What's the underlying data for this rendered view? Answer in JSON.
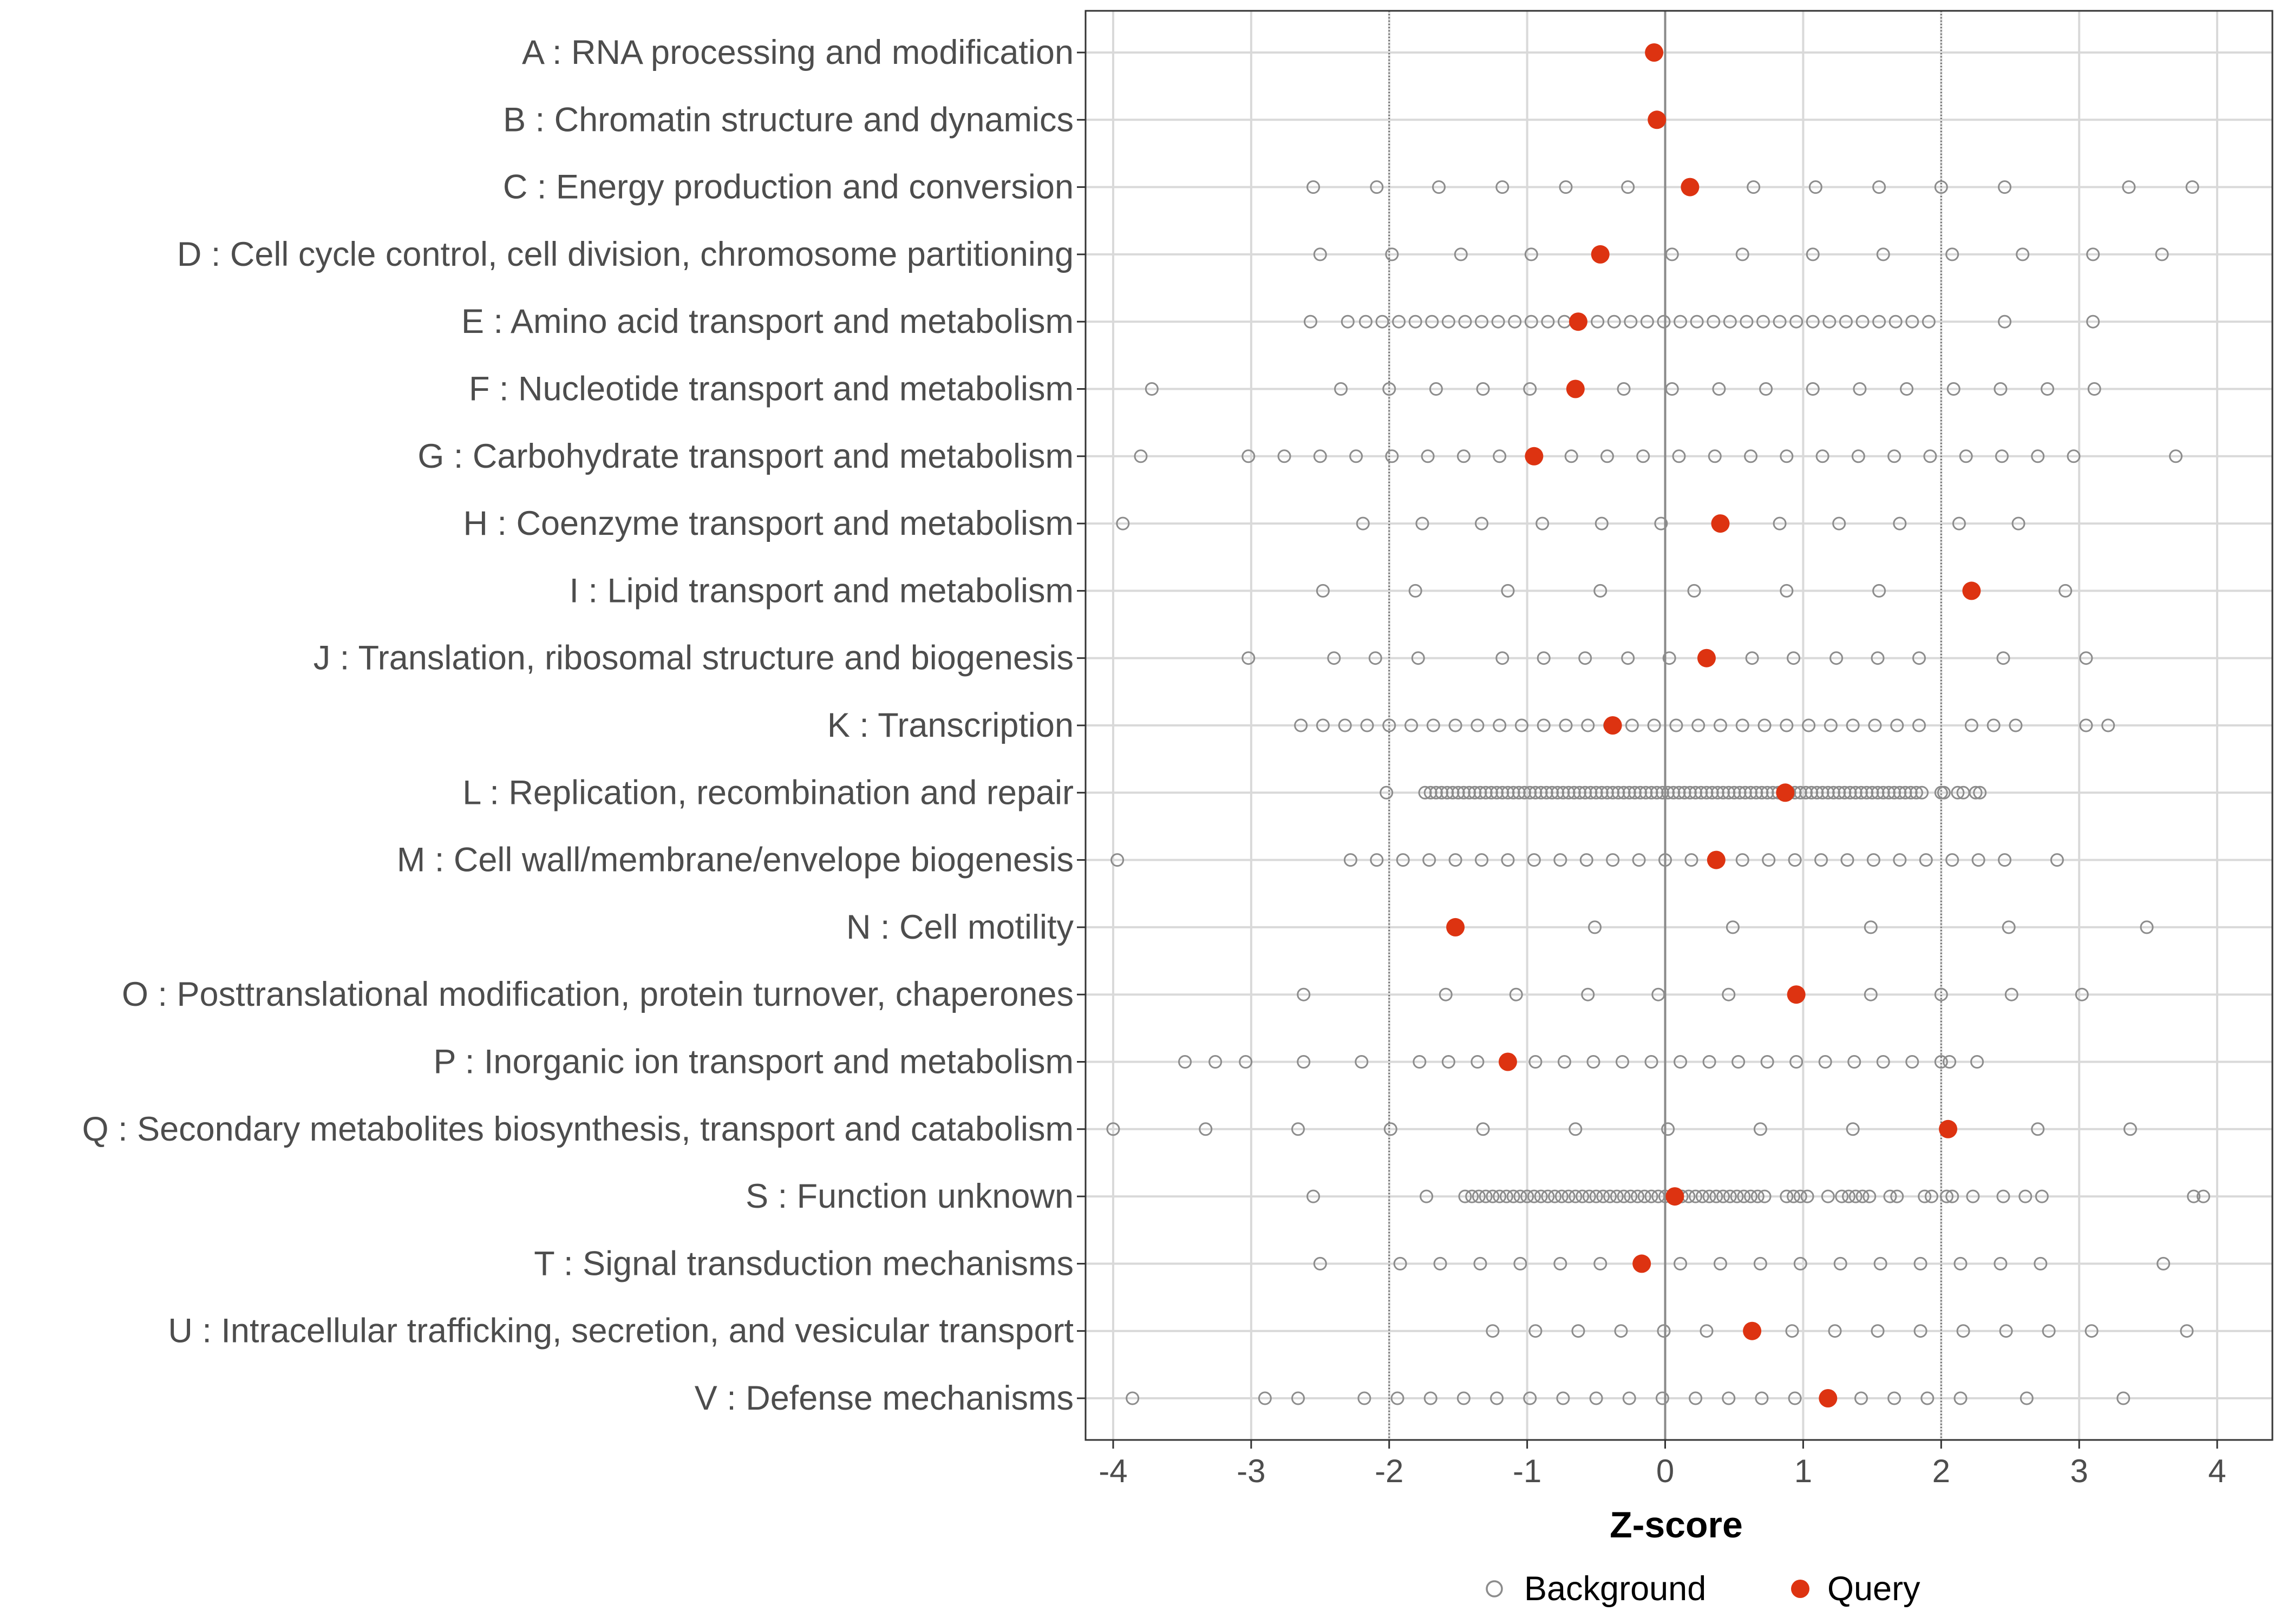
{
  "chart_data": {
    "type": "scatter",
    "title": "",
    "xlabel": "Z-score",
    "ylabel": "",
    "xlim": [
      -4.2,
      4.4
    ],
    "xticks": [
      "-4",
      "-3",
      "-2",
      "-1",
      "0",
      "1",
      "2",
      "3",
      "4"
    ],
    "reference_lines": [
      -2,
      0,
      2
    ],
    "grid": true,
    "legend": {
      "position": "bottom",
      "entries": [
        {
          "name": "Background",
          "marker": "open-circle",
          "color": "#8c8c8c"
        },
        {
          "name": "Query",
          "marker": "filled-circle",
          "color": "#dd3311"
        }
      ]
    },
    "categories": [
      "A : RNA processing and modification",
      "B : Chromatin structure and dynamics",
      "C : Energy production and conversion",
      "D : Cell cycle control, cell division, chromosome partitioning",
      "E : Amino acid transport and metabolism",
      "F : Nucleotide transport and metabolism",
      "G : Carbohydrate transport and metabolism",
      "H : Coenzyme transport and metabolism",
      "I : Lipid transport and metabolism",
      "J : Translation, ribosomal structure and biogenesis",
      "K : Transcription",
      "L : Replication, recombination and repair",
      "M : Cell wall/membrane/envelope biogenesis",
      "N : Cell motility",
      "O : Posttranslational modification, protein turnover, chaperones",
      "P : Inorganic ion transport and metabolism",
      "Q : Secondary metabolites biosynthesis, transport and catabolism",
      "S : Function unknown",
      "T : Signal transduction mechanisms",
      "U : Intracellular trafficking, secretion, and vesicular transport",
      "V : Defense mechanisms"
    ],
    "series": [
      {
        "name": "Query",
        "values": [
          -0.08,
          -0.06,
          0.18,
          -0.47,
          -0.63,
          -0.65,
          -0.95,
          0.4,
          2.22,
          0.3,
          -0.38,
          0.87,
          0.37,
          -1.52,
          0.95,
          -1.14,
          2.05,
          0.07,
          -0.17,
          0.63,
          1.18
        ]
      },
      {
        "name": "Background",
        "values": [
          [],
          [],
          [
            -2.55,
            -2.09,
            -1.64,
            -1.18,
            -0.72,
            -0.27,
            0.64,
            1.09,
            1.55,
            2.0,
            2.46,
            3.36,
            3.82
          ],
          [
            -2.5,
            -1.98,
            -1.48,
            -0.97,
            0.05,
            0.56,
            1.07,
            1.58,
            2.08,
            2.59,
            3.1,
            3.6
          ],
          [
            -2.57,
            -2.3,
            -2.17,
            -2.05,
            -1.93,
            -1.81,
            -1.69,
            -1.57,
            -1.45,
            -1.33,
            -1.21,
            -1.09,
            -0.97,
            -0.85,
            -0.73,
            -0.49,
            -0.37,
            -0.25,
            -0.13,
            -0.01,
            0.11,
            0.23,
            0.35,
            0.47,
            0.59,
            0.71,
            0.83,
            0.95,
            1.07,
            1.19,
            1.31,
            1.43,
            1.55,
            1.67,
            1.79,
            1.91,
            2.46,
            3.1
          ],
          [
            -3.72,
            -2.35,
            -2.0,
            -1.66,
            -1.32,
            -0.98,
            -0.3,
            0.05,
            0.39,
            0.73,
            1.07,
            1.41,
            1.75,
            2.09,
            2.43,
            2.77,
            3.11
          ],
          [
            -3.8,
            -3.02,
            -2.76,
            -2.5,
            -2.24,
            -1.98,
            -1.72,
            -1.46,
            -1.2,
            -0.68,
            -0.42,
            -0.16,
            0.1,
            0.36,
            0.62,
            0.88,
            1.14,
            1.4,
            1.66,
            1.92,
            2.18,
            2.44,
            2.7,
            2.96,
            3.7
          ],
          [
            -3.93,
            -2.19,
            -1.76,
            -1.33,
            -0.89,
            -0.46,
            -0.03,
            0.83,
            1.26,
            1.7,
            2.13,
            2.56
          ],
          [
            -2.48,
            -1.81,
            -1.14,
            -0.47,
            0.21,
            0.88,
            1.55,
            2.9
          ],
          [
            -3.02,
            -2.4,
            -2.1,
            -1.79,
            -1.18,
            -0.88,
            -0.58,
            -0.27,
            0.03,
            0.63,
            0.93,
            1.24,
            1.54,
            1.84,
            2.45,
            3.05
          ],
          [
            -2.64,
            -2.48,
            -2.32,
            -2.16,
            -2.0,
            -1.84,
            -1.68,
            -1.52,
            -1.36,
            -1.2,
            -1.04,
            -0.88,
            -0.72,
            -0.56,
            -0.4,
            -0.24,
            -0.08,
            0.08,
            0.24,
            0.4,
            0.56,
            0.72,
            0.88,
            1.04,
            1.2,
            1.36,
            1.52,
            1.68,
            1.84,
            2.22,
            2.38,
            2.54,
            3.05,
            3.21
          ],
          [
            -2.02,
            -1.74,
            -1.7,
            -1.66,
            -1.62,
            -1.58,
            -1.54,
            -1.5,
            -1.46,
            -1.42,
            -1.38,
            -1.34,
            -1.3,
            -1.26,
            -1.22,
            -1.18,
            -1.14,
            -1.1,
            -1.06,
            -1.02,
            -0.98,
            -0.94,
            -0.9,
            -0.86,
            -0.82,
            -0.78,
            -0.74,
            -0.7,
            -0.66,
            -0.62,
            -0.58,
            -0.54,
            -0.5,
            -0.46,
            -0.42,
            -0.38,
            -0.34,
            -0.3,
            -0.26,
            -0.22,
            -0.18,
            -0.14,
            -0.1,
            -0.06,
            -0.02,
            0.02,
            0.06,
            0.1,
            0.14,
            0.18,
            0.22,
            0.26,
            0.3,
            0.34,
            0.38,
            0.42,
            0.46,
            0.5,
            0.54,
            0.58,
            0.62,
            0.66,
            0.7,
            0.74,
            0.78,
            0.82,
            0.86,
            0.9,
            0.94,
            0.98,
            1.02,
            1.06,
            1.1,
            1.14,
            1.18,
            1.22,
            1.26,
            1.3,
            1.34,
            1.38,
            1.42,
            1.46,
            1.5,
            1.54,
            1.58,
            1.62,
            1.66,
            1.7,
            1.74,
            1.78,
            1.82,
            1.86,
            2.0,
            2.02,
            2.12,
            2.16,
            2.25,
            2.28
          ],
          [
            -3.97,
            -2.28,
            -2.09,
            -1.9,
            -1.71,
            -1.52,
            -1.33,
            -1.14,
            -0.95,
            -0.76,
            -0.57,
            -0.38,
            -0.19,
            0.0,
            0.19,
            0.56,
            0.75,
            0.94,
            1.13,
            1.32,
            1.51,
            1.7,
            1.89,
            2.08,
            2.27,
            2.46,
            2.84
          ],
          [
            -0.51,
            0.49,
            1.49,
            2.49,
            3.49
          ],
          [
            -2.62,
            -1.59,
            -1.08,
            -0.56,
            -0.05,
            0.46,
            1.49,
            2.0,
            2.51,
            3.02
          ],
          [
            -3.48,
            -3.26,
            -3.04,
            -2.62,
            -2.2,
            -1.78,
            -1.57,
            -1.36,
            -0.94,
            -0.73,
            -0.52,
            -0.31,
            -0.1,
            0.11,
            0.32,
            0.53,
            0.74,
            0.95,
            1.16,
            1.37,
            1.58,
            1.79,
            2.0,
            2.06,
            2.26
          ],
          [
            -4.0,
            -3.33,
            -2.66,
            -1.99,
            -1.32,
            -0.65,
            0.02,
            0.69,
            1.36,
            2.7,
            3.37
          ],
          [
            -2.55,
            -1.73,
            -1.45,
            -1.4,
            -1.35,
            -1.3,
            -1.25,
            -1.2,
            -1.15,
            -1.1,
            -1.05,
            -1.0,
            -0.95,
            -0.9,
            -0.85,
            -0.8,
            -0.75,
            -0.7,
            -0.65,
            -0.6,
            -0.55,
            -0.5,
            -0.45,
            -0.4,
            -0.35,
            -0.3,
            -0.25,
            -0.2,
            -0.15,
            -0.1,
            -0.05,
            0.0,
            0.12,
            0.17,
            0.22,
            0.27,
            0.32,
            0.37,
            0.42,
            0.47,
            0.52,
            0.57,
            0.62,
            0.67,
            0.72,
            0.88,
            0.93,
            0.98,
            1.03,
            1.18,
            1.28,
            1.33,
            1.38,
            1.43,
            1.48,
            1.63,
            1.68,
            1.88,
            1.93,
            2.04,
            2.08,
            2.23,
            2.45,
            2.61,
            2.73,
            3.83,
            3.9
          ],
          [
            -2.5,
            -1.92,
            -1.63,
            -1.34,
            -1.05,
            -0.76,
            -0.47,
            0.11,
            0.4,
            0.69,
            0.98,
            1.27,
            1.56,
            1.85,
            2.14,
            2.43,
            2.72,
            3.61
          ],
          [
            -1.25,
            -0.94,
            -0.63,
            -0.32,
            -0.01,
            0.3,
            0.92,
            1.23,
            1.54,
            1.85,
            2.16,
            2.47,
            2.78,
            3.09,
            3.78
          ],
          [
            -3.86,
            -2.9,
            -2.66,
            -2.18,
            -1.94,
            -1.7,
            -1.46,
            -1.22,
            -0.98,
            -0.74,
            -0.5,
            -0.26,
            -0.02,
            0.22,
            0.46,
            0.7,
            0.94,
            1.42,
            1.66,
            1.9,
            2.14,
            2.62,
            3.32
          ]
        ]
      }
    ]
  }
}
